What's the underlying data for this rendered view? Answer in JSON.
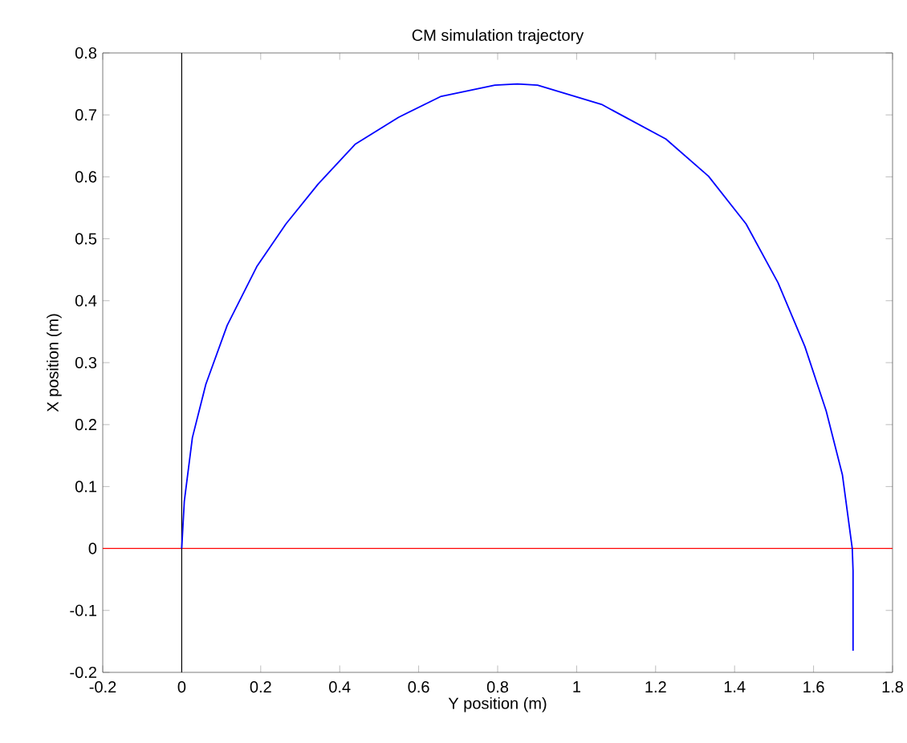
{
  "chart_data": {
    "type": "line",
    "title": "CM simulation trajectory",
    "xlabel": "Y position (m)",
    "ylabel": "X position (m)",
    "series": [
      {
        "color": "#0000ff",
        "x": [
          0,
          0.0065,
          0.027,
          0.061,
          0.115,
          0.19,
          0.264,
          0.345,
          0.44,
          0.549,
          0.657,
          0.793,
          0.85,
          0.901,
          1.063,
          1.226,
          1.334,
          1.429,
          1.51,
          1.578,
          1.632,
          1.673,
          1.698,
          1.7,
          1.7
        ],
        "values": [
          0,
          0.076,
          0.179,
          0.265,
          0.36,
          0.455,
          0.524,
          0.588,
          0.653,
          0.696,
          0.73,
          0.748,
          0.75,
          0.748,
          0.717,
          0.661,
          0.601,
          0.524,
          0.429,
          0.326,
          0.222,
          0.119,
          0,
          -0.036,
          -0.165
        ]
      }
    ],
    "ref_lines": [
      {
        "axis": "y",
        "value": 0,
        "color": "#ff0000"
      },
      {
        "axis": "x",
        "value": 0,
        "color": "#000000"
      }
    ],
    "xlim": [
      -0.2,
      1.8
    ],
    "ylim": [
      -0.2,
      0.8
    ],
    "xticks": [
      -0.2,
      0,
      0.2,
      0.4,
      0.6,
      0.8,
      1,
      1.2,
      1.4,
      1.6,
      1.8
    ],
    "yticks": [
      -0.2,
      -0.1,
      0,
      0.1,
      0.2,
      0.3,
      0.4,
      0.5,
      0.6,
      0.7,
      0.8
    ],
    "grid": false,
    "marker": "none",
    "line_style": "solid"
  }
}
